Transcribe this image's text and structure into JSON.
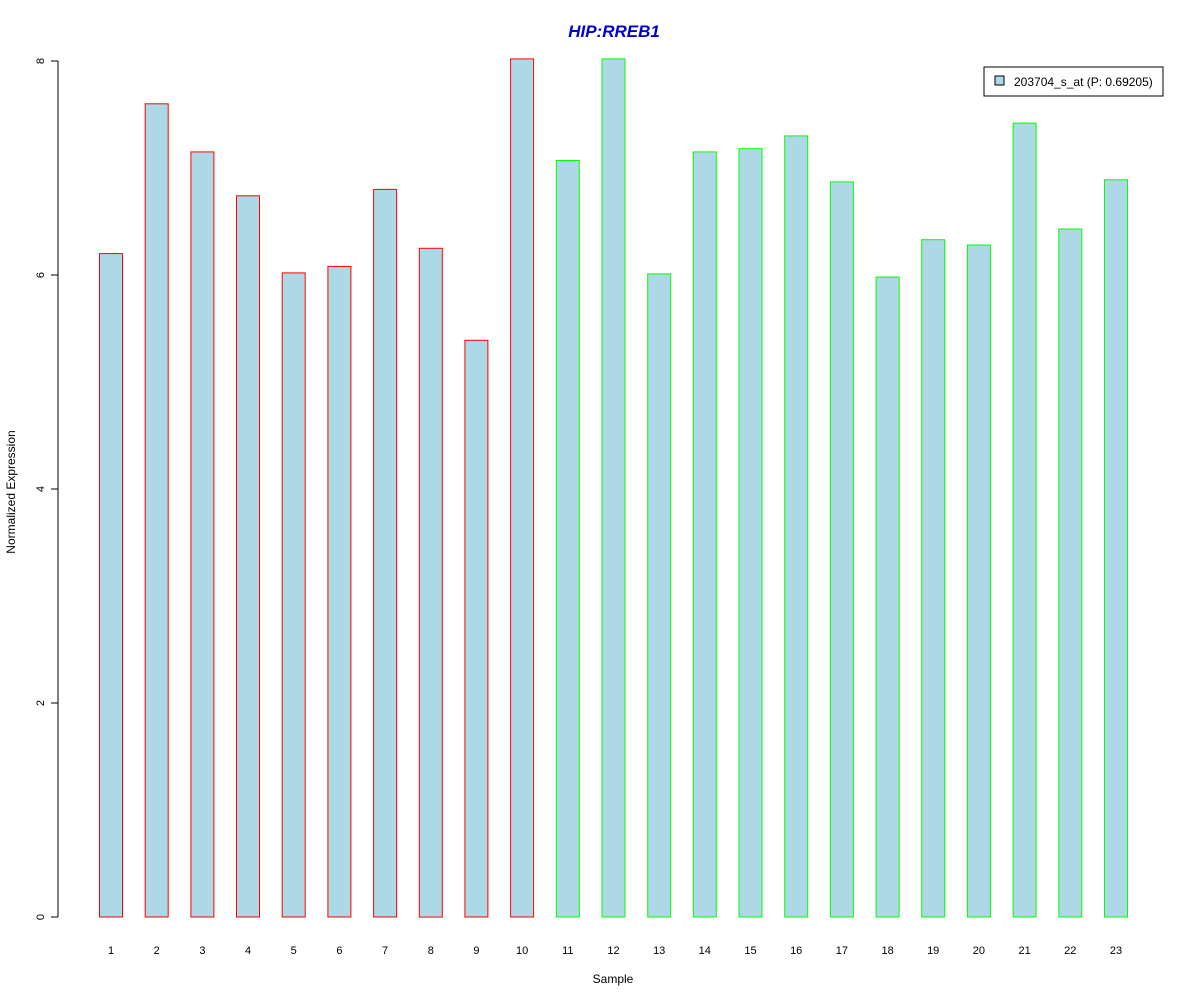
{
  "chart_data": {
    "type": "bar",
    "title": "HIP:RREB1",
    "xlabel": "Sample",
    "ylabel": "Normalized Expression",
    "categories": [
      "1",
      "2",
      "3",
      "4",
      "5",
      "6",
      "7",
      "8",
      "9",
      "10",
      "11",
      "12",
      "13",
      "14",
      "15",
      "16",
      "17",
      "18",
      "19",
      "20",
      "21",
      "22",
      "23"
    ],
    "series": [
      {
        "name": "203704_s_at (P: 0.69205)",
        "values": [
          6.2,
          7.6,
          7.15,
          6.74,
          6.02,
          6.08,
          6.8,
          6.25,
          5.39,
          8.02,
          7.07,
          8.02,
          6.01,
          7.15,
          7.18,
          7.3,
          6.87,
          5.98,
          6.33,
          6.28,
          7.42,
          6.43,
          6.89
        ]
      }
    ],
    "groups": [
      {
        "samples": [
          "1",
          "2",
          "3",
          "4",
          "5",
          "6",
          "7",
          "8",
          "9",
          "10"
        ],
        "border_color": "#ff0000"
      },
      {
        "samples": [
          "11",
          "12",
          "13",
          "14",
          "15",
          "16",
          "17",
          "18",
          "19",
          "20",
          "21",
          "22",
          "23"
        ],
        "border_color": "#00ff00"
      }
    ],
    "ylim": [
      0,
      8
    ],
    "yticks": [
      "0",
      "2",
      "4",
      "6",
      "8"
    ],
    "grid": false,
    "legend_position": "top-right",
    "colors": {
      "bar_fill": "#add8e6",
      "title": "#0000cd",
      "group1_border": "#ff0000",
      "group2_border": "#00ff00"
    }
  }
}
